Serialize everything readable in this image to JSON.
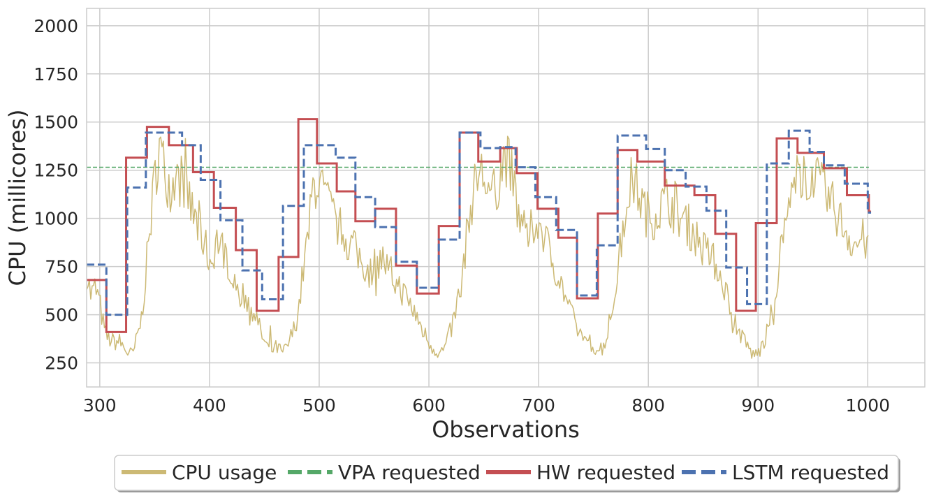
{
  "chart_data": {
    "type": "line",
    "title": "",
    "xlabel": "Observations",
    "ylabel": "CPU (millicores)",
    "xlim": [
      288,
      1052
    ],
    "ylim": [
      125,
      2090
    ],
    "xticks": [
      300,
      400,
      500,
      600,
      700,
      800,
      900,
      1000
    ],
    "yticks": [
      250,
      500,
      750,
      1000,
      1250,
      1500,
      1750,
      2000
    ],
    "grid": true,
    "legend_position": "bottom-center",
    "series": [
      {
        "name": "CPU usage",
        "kind": "noisy-line",
        "color": "#ccb974",
        "anchors": [
          [
            288,
            720
          ],
          [
            292,
            600
          ],
          [
            296,
            640
          ],
          [
            300,
            560
          ],
          [
            304,
            420
          ],
          [
            307,
            380
          ],
          [
            312,
            360
          ],
          [
            318,
            360
          ],
          [
            322,
            330
          ],
          [
            326,
            300
          ],
          [
            330,
            290
          ],
          [
            334,
            380
          ],
          [
            338,
            480
          ],
          [
            342,
            720
          ],
          [
            346,
            960
          ],
          [
            350,
            1200
          ],
          [
            354,
            1380
          ],
          [
            358,
            1280
          ],
          [
            362,
            1200
          ],
          [
            366,
            1150
          ],
          [
            370,
            1200
          ],
          [
            374,
            1200
          ],
          [
            378,
            1190
          ],
          [
            382,
            1080
          ],
          [
            386,
            1000
          ],
          [
            390,
            950
          ],
          [
            394,
            900
          ],
          [
            398,
            820
          ],
          [
            402,
            760
          ],
          [
            406,
            900
          ],
          [
            410,
            850
          ],
          [
            414,
            820
          ],
          [
            418,
            760
          ],
          [
            422,
            700
          ],
          [
            426,
            620
          ],
          [
            430,
            600
          ],
          [
            434,
            580
          ],
          [
            438,
            550
          ],
          [
            442,
            500
          ],
          [
            446,
            420
          ],
          [
            450,
            360
          ],
          [
            454,
            320
          ],
          [
            458,
            320
          ],
          [
            462,
            330
          ],
          [
            466,
            300
          ],
          [
            470,
            320
          ],
          [
            474,
            380
          ],
          [
            478,
            440
          ],
          [
            482,
            560
          ],
          [
            486,
            760
          ],
          [
            490,
            900
          ],
          [
            494,
            1150
          ],
          [
            498,
            1200
          ],
          [
            502,
            1150
          ],
          [
            506,
            1100
          ],
          [
            510,
            1050
          ],
          [
            514,
            1000
          ],
          [
            518,
            960
          ],
          [
            522,
            920
          ],
          [
            526,
            880
          ],
          [
            530,
            860
          ],
          [
            534,
            820
          ],
          [
            538,
            790
          ],
          [
            542,
            750
          ],
          [
            546,
            720
          ],
          [
            550,
            760
          ],
          [
            554,
            780
          ],
          [
            558,
            790
          ],
          [
            562,
            740
          ],
          [
            566,
            700
          ],
          [
            570,
            660
          ],
          [
            574,
            640
          ],
          [
            578,
            600
          ],
          [
            582,
            560
          ],
          [
            586,
            520
          ],
          [
            590,
            480
          ],
          [
            594,
            420
          ],
          [
            598,
            380
          ],
          [
            602,
            340
          ],
          [
            606,
            320
          ],
          [
            610,
            300
          ],
          [
            614,
            320
          ],
          [
            618,
            380
          ],
          [
            622,
            460
          ],
          [
            626,
            560
          ],
          [
            630,
            700
          ],
          [
            634,
            880
          ],
          [
            638,
            1050
          ],
          [
            642,
            1200
          ],
          [
            646,
            1240
          ],
          [
            650,
            1220
          ],
          [
            654,
            1150
          ],
          [
            658,
            1100
          ],
          [
            662,
            1180
          ],
          [
            666,
            1250
          ],
          [
            670,
            1330
          ],
          [
            674,
            1250
          ],
          [
            678,
            1150
          ],
          [
            682,
            1000
          ],
          [
            686,
            920
          ],
          [
            690,
            880
          ],
          [
            694,
            950
          ],
          [
            698,
            1000
          ],
          [
            702,
            960
          ],
          [
            706,
            900
          ],
          [
            710,
            820
          ],
          [
            714,
            760
          ],
          [
            718,
            700
          ],
          [
            722,
            640
          ],
          [
            726,
            560
          ],
          [
            730,
            500
          ],
          [
            734,
            440
          ],
          [
            738,
            400
          ],
          [
            742,
            380
          ],
          [
            746,
            360
          ],
          [
            750,
            340
          ],
          [
            754,
            320
          ],
          [
            758,
            330
          ],
          [
            762,
            380
          ],
          [
            766,
            480
          ],
          [
            770,
            640
          ],
          [
            774,
            820
          ],
          [
            778,
            1000
          ],
          [
            782,
            1150
          ],
          [
            786,
            1200
          ],
          [
            790,
            1150
          ],
          [
            794,
            1080
          ],
          [
            798,
            1030
          ],
          [
            802,
            1000
          ],
          [
            806,
            1020
          ],
          [
            810,
            1050
          ],
          [
            814,
            1080
          ],
          [
            818,
            1100
          ],
          [
            822,
            1060
          ],
          [
            826,
            1030
          ],
          [
            830,
            1000
          ],
          [
            834,
            980
          ],
          [
            838,
            950
          ],
          [
            842,
            920
          ],
          [
            846,
            880
          ],
          [
            850,
            840
          ],
          [
            854,
            820
          ],
          [
            858,
            790
          ],
          [
            862,
            760
          ],
          [
            866,
            700
          ],
          [
            870,
            640
          ],
          [
            874,
            560
          ],
          [
            878,
            480
          ],
          [
            882,
            420
          ],
          [
            886,
            380
          ],
          [
            890,
            340
          ],
          [
            894,
            300
          ],
          [
            898,
            290
          ],
          [
            902,
            320
          ],
          [
            906,
            360
          ],
          [
            910,
            440
          ],
          [
            914,
            560
          ],
          [
            918,
            720
          ],
          [
            922,
            880
          ],
          [
            926,
            1000
          ],
          [
            930,
            1100
          ],
          [
            934,
            1180
          ],
          [
            938,
            1220
          ],
          [
            942,
            1250
          ],
          [
            946,
            1230
          ],
          [
            950,
            1200
          ],
          [
            954,
            1180
          ],
          [
            958,
            1150
          ],
          [
            962,
            1120
          ],
          [
            966,
            1080
          ],
          [
            970,
            1050
          ],
          [
            974,
            1000
          ],
          [
            978,
            960
          ],
          [
            982,
            920
          ],
          [
            986,
            880
          ],
          [
            990,
            860
          ],
          [
            994,
            900
          ],
          [
            998,
            880
          ],
          [
            1001,
            800
          ]
        ]
      },
      {
        "name": "VPA requested",
        "kind": "flat",
        "color": "#55a868",
        "value": 1265
      },
      {
        "name": "HW requested",
        "kind": "step",
        "color": "#c44e52",
        "steps": [
          [
            288,
            680
          ],
          [
            306,
            410
          ],
          [
            324,
            1315
          ],
          [
            343,
            1475
          ],
          [
            363,
            1380
          ],
          [
            385,
            1240
          ],
          [
            404,
            1055
          ],
          [
            424,
            835
          ],
          [
            443,
            520
          ],
          [
            463,
            800
          ],
          [
            481,
            1515
          ],
          [
            498,
            1285
          ],
          [
            516,
            1140
          ],
          [
            533,
            985
          ],
          [
            551,
            1050
          ],
          [
            570,
            755
          ],
          [
            589,
            610
          ],
          [
            609,
            960
          ],
          [
            628,
            1445
          ],
          [
            645,
            1295
          ],
          [
            665,
            1365
          ],
          [
            680,
            1235
          ],
          [
            699,
            1050
          ],
          [
            718,
            900
          ],
          [
            735,
            585
          ],
          [
            754,
            1025
          ],
          [
            772,
            1355
          ],
          [
            790,
            1295
          ],
          [
            815,
            1170
          ],
          [
            842,
            1120
          ],
          [
            861,
            920
          ],
          [
            880,
            520
          ],
          [
            898,
            975
          ],
          [
            917,
            1415
          ],
          [
            936,
            1340
          ],
          [
            960,
            1260
          ],
          [
            981,
            1120
          ],
          [
            1001,
            1035
          ]
        ],
        "end_x": 1003
      },
      {
        "name": "LSTM requested",
        "kind": "step",
        "color": "#4c72b0",
        "steps": [
          [
            288,
            760
          ],
          [
            306,
            500
          ],
          [
            325,
            1160
          ],
          [
            342,
            1445
          ],
          [
            375,
            1380
          ],
          [
            392,
            1200
          ],
          [
            410,
            990
          ],
          [
            430,
            730
          ],
          [
            448,
            580
          ],
          [
            467,
            1065
          ],
          [
            486,
            1380
          ],
          [
            515,
            1315
          ],
          [
            533,
            1110
          ],
          [
            551,
            955
          ],
          [
            570,
            775
          ],
          [
            589,
            640
          ],
          [
            609,
            890
          ],
          [
            628,
            1445
          ],
          [
            647,
            1365
          ],
          [
            665,
            1370
          ],
          [
            679,
            1265
          ],
          [
            697,
            1110
          ],
          [
            716,
            940
          ],
          [
            735,
            600
          ],
          [
            753,
            860
          ],
          [
            772,
            1430
          ],
          [
            798,
            1360
          ],
          [
            815,
            1250
          ],
          [
            834,
            1165
          ],
          [
            853,
            1040
          ],
          [
            871,
            745
          ],
          [
            890,
            555
          ],
          [
            908,
            1285
          ],
          [
            928,
            1455
          ],
          [
            947,
            1345
          ],
          [
            960,
            1275
          ],
          [
            979,
            1180
          ],
          [
            1000,
            1030
          ]
        ],
        "end_x": 1003
      }
    ]
  }
}
